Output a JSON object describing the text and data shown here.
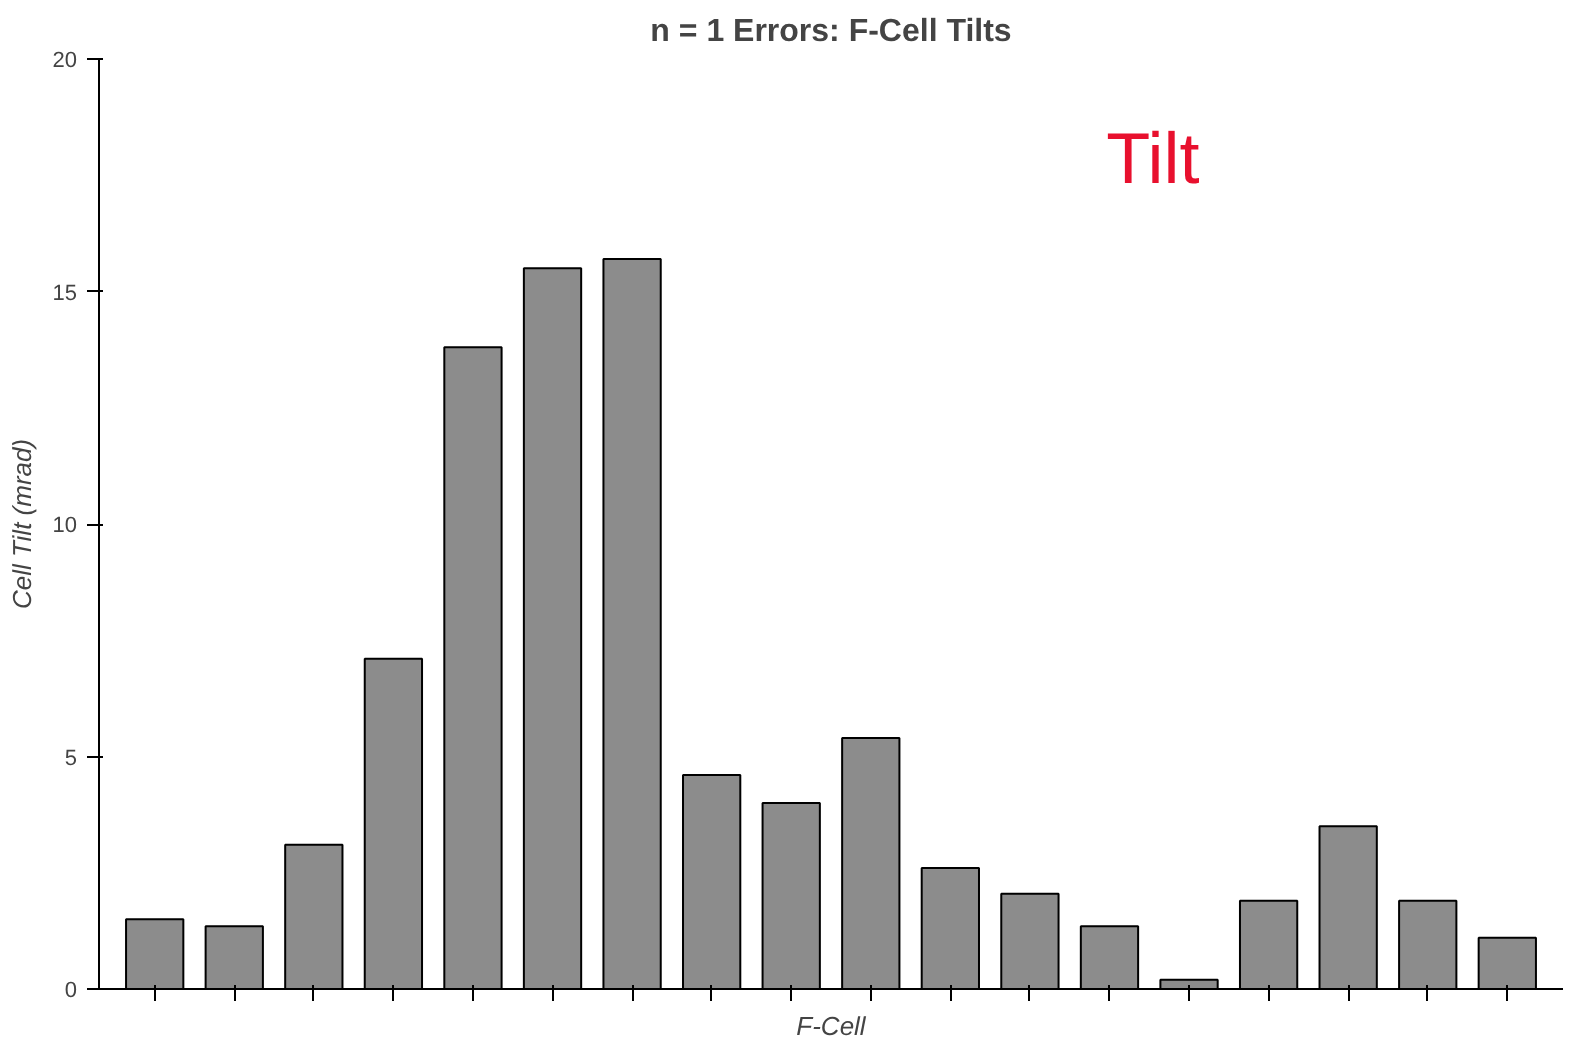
{
  "chart_data": {
    "type": "bar",
    "title": "n = 1 Errors: F-Cell Tilts",
    "xlabel": "F-Cell",
    "ylabel": "Cell Tilt (mrad)",
    "annotations": [
      "Tilt"
    ],
    "categories": [
      null,
      null,
      null,
      null,
      null,
      null,
      null,
      null,
      null,
      null,
      null,
      null,
      null,
      null,
      null,
      null,
      null,
      null
    ],
    "values": [
      1.5,
      1.35,
      3.1,
      7.1,
      13.8,
      15.5,
      15.7,
      4.6,
      4.0,
      5.4,
      2.6,
      2.05,
      1.35,
      0.2,
      1.9,
      3.5,
      1.9,
      1.1
    ],
    "color": "#8c8c8c",
    "ylim": [
      0,
      20
    ],
    "yticks": [
      0,
      5,
      10,
      15,
      20
    ],
    "grid": false
  }
}
